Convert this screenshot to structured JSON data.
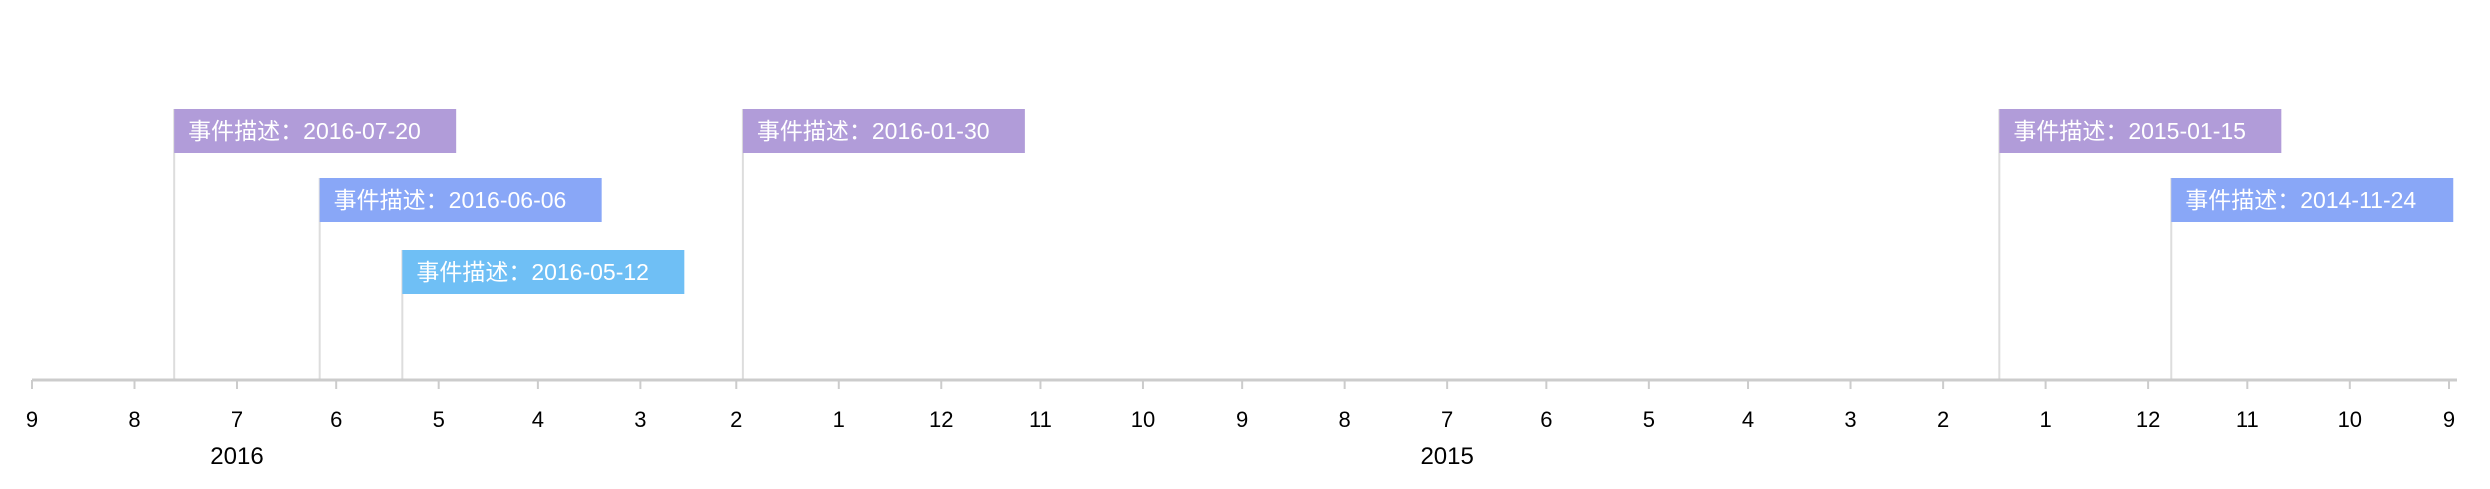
{
  "chart_data": {
    "type": "timeline",
    "title": "",
    "axis": {
      "orientation": "reversed",
      "start": "2016-09-01",
      "end": "2014-09-01",
      "month_ticks": [
        "9",
        "8",
        "7",
        "6",
        "5",
        "4",
        "3",
        "2",
        "1",
        "12",
        "11",
        "10",
        "9",
        "8",
        "7",
        "6",
        "5",
        "4",
        "3",
        "2",
        "1",
        "12",
        "11",
        "10",
        "9"
      ],
      "year_labels": [
        "2016",
        "2015"
      ]
    },
    "events": [
      {
        "label": "事件描述：2016-07-20",
        "date": "2016-07-20",
        "color": "#b19cd9"
      },
      {
        "label": "事件描述：2016-06-06",
        "date": "2016-06-06",
        "color": "#89a7f7"
      },
      {
        "label": "事件描述：2016-05-12",
        "date": "2016-05-12",
        "color": "#6fbff5"
      },
      {
        "label": "事件描述：2016-01-30",
        "date": "2016-01-30",
        "color": "#b19cd9"
      },
      {
        "label": "事件描述：2015-01-15",
        "date": "2015-01-15",
        "color": "#b19cd9"
      },
      {
        "label": "事件描述：2014-11-24",
        "date": "2014-11-24",
        "color": "#89a7f7"
      }
    ],
    "colors": {
      "axis": "#cccccc",
      "connector": "#dddddd"
    }
  }
}
